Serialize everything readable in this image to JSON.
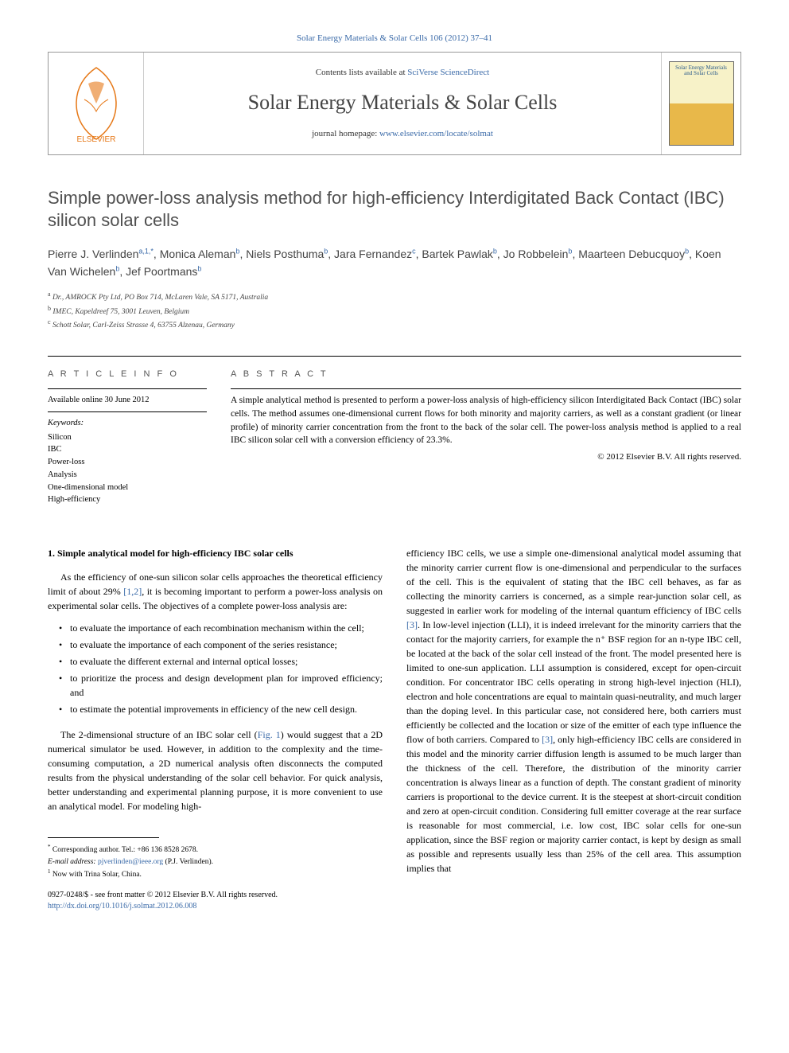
{
  "top_link": "Solar Energy Materials & Solar Cells 106 (2012) 37–41",
  "header": {
    "contents_prefix": "Contents lists available at ",
    "contents_link": "SciVerse ScienceDirect",
    "journal_name": "Solar Energy Materials & Solar Cells",
    "homepage_prefix": "journal homepage: ",
    "homepage_link": "www.elsevier.com/locate/solmat",
    "cover_text_line1": "Solar Energy Materials",
    "cover_text_line2": "and Solar Cells",
    "elsevier_label": "ELSEVIER"
  },
  "article": {
    "title": "Simple power-loss analysis method for high-efficiency Interdigitated Back Contact (IBC) silicon solar cells",
    "authors_html": "Pierre J. Verlinden|a,1,*|, Monica Aleman|b|, Niels Posthuma|b|, Jara Fernandez|c|, Bartek Pawlak|b|, Jo Robbelein|b|, Maarteen Debucquoy|b|, Koen Van Wichelen|b|, Jef Poortmans|b|",
    "affiliations": [
      {
        "sup": "a",
        "text": "Dr., AMROCK Pty Ltd, PO Box 714, McLaren Vale, SA 5171, Australia"
      },
      {
        "sup": "b",
        "text": "IMEC, Kapeldreef 75, 3001 Leuven, Belgium"
      },
      {
        "sup": "c",
        "text": "Schott Solar, Carl-Zeiss Strasse 4, 63755 Alzenau, Germany"
      }
    ]
  },
  "info": {
    "heading": "A R T I C L E  I N F O",
    "online_date": "Available online 30 June 2012",
    "keywords_label": "Keywords:",
    "keywords": [
      "Silicon",
      "IBC",
      "Power-loss",
      "Analysis",
      "One-dimensional model",
      "High-efficiency"
    ]
  },
  "abstract": {
    "heading": "A B S T R A C T",
    "text": "A simple analytical method is presented to perform a power-loss analysis of high-efficiency silicon Interdigitated Back Contact (IBC) solar cells. The method assumes one-dimensional current flows for both minority and majority carriers, as well as a constant gradient (or linear profile) of minority carrier concentration from the front to the back of the solar cell. The power-loss analysis method is applied to a real IBC silicon solar cell with a conversion efficiency of 23.3%.",
    "copyright": "© 2012 Elsevier B.V. All rights reserved."
  },
  "body": {
    "section1_heading": "1. Simple analytical model for high-efficiency IBC solar cells",
    "para1": "As the efficiency of one-sun silicon solar cells approaches the theoretical efficiency limit of about 29% [1,2], it is becoming important to perform a power-loss analysis on experimental solar cells. The objectives of a complete power-loss analysis are:",
    "objectives": [
      "to evaluate the importance of each recombination mechanism within the cell;",
      "to evaluate the importance of each component of the series resistance;",
      "to evaluate the different external and internal optical losses;",
      "to prioritize the process and design development plan for improved efficiency; and",
      "to estimate the potential improvements in efficiency of the new cell design."
    ],
    "para2_prefix": "The 2-dimensional structure of an IBC solar cell (",
    "para2_fig": "Fig. 1",
    "para2_suffix": ") would suggest that a 2D numerical simulator be used. However, in addition to the complexity and the time-consuming computation, a 2D numerical analysis often disconnects the computed results from the physical understanding of the solar cell behavior. For quick analysis, better understanding and experimental planning purpose, it is more convenient to use an analytical model. For modeling high-",
    "col2_para_prefix": "efficiency IBC cells, we use a simple one-dimensional analytical model assuming that the minority carrier current flow is one-dimensional and perpendicular to the surfaces of the cell. This is the equivalent of stating that the IBC cell behaves, as far as collecting the minority carriers is concerned, as a simple rear-junction solar cell, as suggested in earlier work for modeling of the internal quantum efficiency of IBC cells ",
    "col2_ref1": "[3]",
    "col2_para_mid": ". In low-level injection (LLI), it is indeed irrelevant for the minority carriers that the contact for the majority carriers, for example the n⁺ BSF region for an n-type IBC cell, be located at the back of the solar cell instead of the front. The model presented here is limited to one-sun application. LLI assumption is considered, except for open-circuit condition. For concentrator IBC cells operating in strong high-level injection (HLI), electron and hole concentrations are equal to maintain quasi-neutrality, and much larger than the doping level. In this particular case, not considered here, both carriers must efficiently be collected and the location or size of the emitter of each type influence the flow of both carriers. Compared to ",
    "col2_ref2": "[3]",
    "col2_para_suffix": ", only high-efficiency IBC cells are considered in this model and the minority carrier diffusion length is assumed to be much larger than the thickness of the cell. Therefore, the distribution of the minority carrier concentration is always linear as a function of depth. The constant gradient of minority carriers is proportional to the device current. It is the steepest at short-circuit condition and zero at open-circuit condition. Considering full emitter coverage at the rear surface is reasonable for most commercial, i.e. low cost, IBC solar cells for one-sun application, since the BSF region or majority carrier contact, is kept by design as small as possible and represents usually less than 25% of the cell area. This assumption implies that"
  },
  "footnotes": {
    "corresponding": "Corresponding author. Tel.: +86 136 8528 2678.",
    "email_label": "E-mail address: ",
    "email": "pjverlinden@ieee.org",
    "email_name": " (P.J. Verlinden).",
    "note1": "Now with Trina Solar, China."
  },
  "doi": {
    "line1": "0927-0248/$ - see front matter © 2012 Elsevier B.V. All rights reserved.",
    "line2": "http://dx.doi.org/10.1016/j.solmat.2012.06.008"
  },
  "refs_links": [
    "[1,2]",
    "[3]"
  ]
}
